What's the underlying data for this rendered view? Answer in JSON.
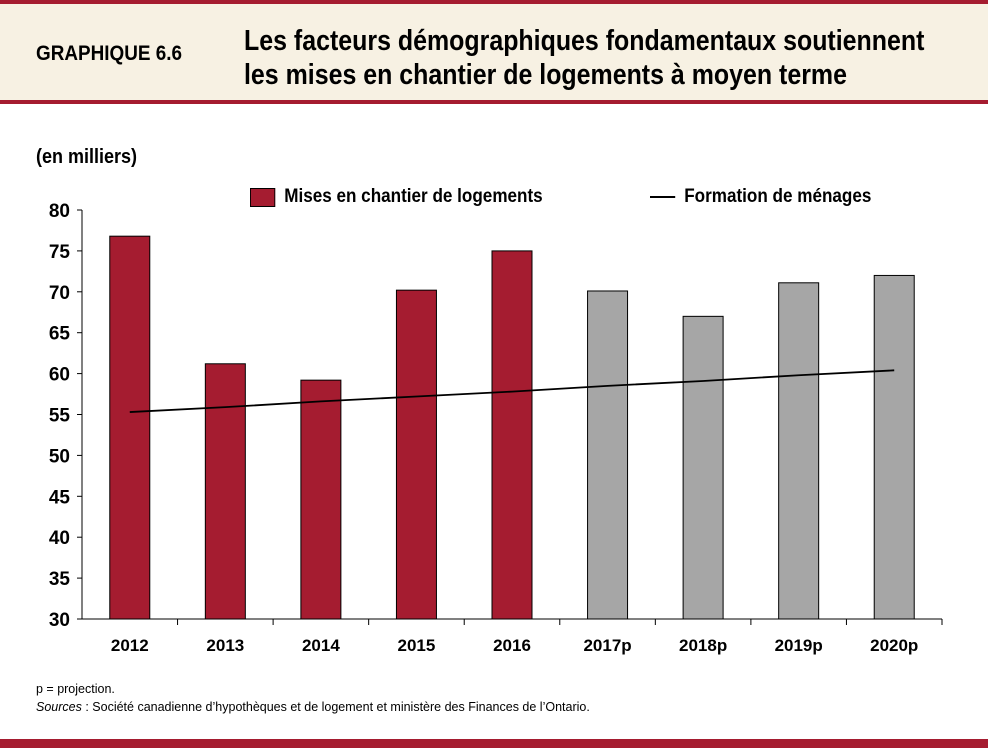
{
  "header": {
    "label": "GRAPHIQUE 6.6",
    "title_line1": "Les facteurs démographiques fondamentaux soutiennent",
    "title_line2": "les mises en chantier de logements à moyen terme"
  },
  "chart_data": {
    "type": "bar",
    "ylabel": "(en milliers)",
    "ylim": [
      30,
      80
    ],
    "yticks": [
      "30",
      "35",
      "40",
      "45",
      "50",
      "55",
      "60",
      "65",
      "70",
      "75",
      "80"
    ],
    "categories": [
      "2012",
      "2013",
      "2014",
      "2015",
      "2016",
      "2017p",
      "2018p",
      "2019p",
      "2020p"
    ],
    "series": [
      {
        "name": "Mises en chantier de logements",
        "type": "bar",
        "values": [
          76.8,
          61.2,
          59.2,
          70.2,
          75.0,
          70.1,
          67.0,
          71.1,
          72.0
        ],
        "color": "#a51c30",
        "projection_color": "#a6a6a6"
      },
      {
        "name": "Formation de ménages",
        "type": "line",
        "values": [
          55.3,
          55.9,
          56.6,
          57.2,
          57.8,
          58.5,
          59.1,
          59.8,
          60.4
        ],
        "color": "#000000"
      }
    ],
    "grid": false,
    "legend": "top"
  },
  "notes": {
    "projection": "p = projection.",
    "sources_label": "Sources",
    "sources_text": " : Société canadienne d’hypothèques et de logement et ministère des Finances de l’Ontario."
  }
}
